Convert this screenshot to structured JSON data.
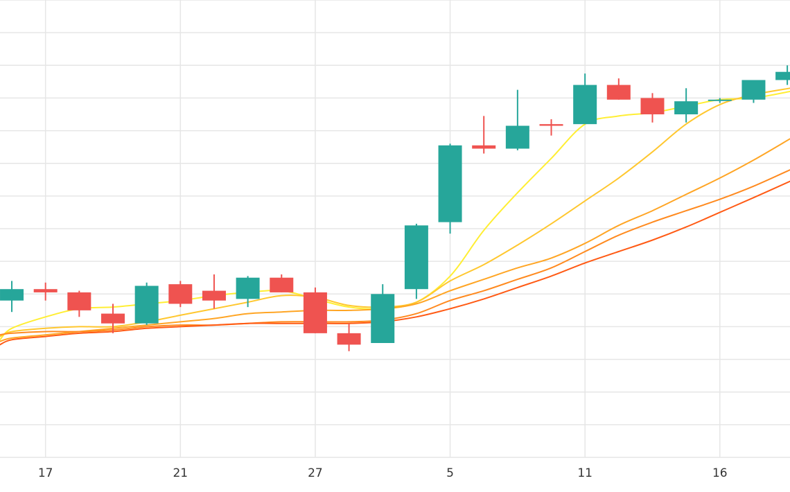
{
  "chart_data": {
    "type": "candlestick",
    "title": "",
    "xlabel": "",
    "ylabel": "",
    "x_ticks": [
      {
        "label": "17",
        "index": 1
      },
      {
        "label": "21",
        "index": 5
      },
      {
        "label": "27",
        "index": 9
      },
      {
        "label": "5",
        "index": 13
      },
      {
        "label": "11",
        "index": 17
      },
      {
        "label": "16",
        "index": 21
      }
    ],
    "y_gridlines": [
      1,
      2,
      3,
      4,
      5,
      6,
      7,
      8,
      9,
      10,
      11,
      12,
      13,
      14
    ],
    "ylim": [
      0,
      14
    ],
    "xlim": [
      -0.35,
      23.08
    ],
    "grid": true,
    "legend": "none",
    "colors": {
      "up": "#26a69a",
      "down": "#ef5350",
      "grid": "#e6e6e6"
    },
    "candles": [
      {
        "index": 0,
        "open": 4.8,
        "high": 5.4,
        "low": 4.45,
        "close": 5.15
      },
      {
        "index": 1,
        "open": 5.15,
        "high": 5.35,
        "low": 4.8,
        "close": 5.05
      },
      {
        "index": 2,
        "open": 5.05,
        "high": 5.1,
        "low": 4.3,
        "close": 4.5
      },
      {
        "index": 3,
        "open": 4.4,
        "high": 4.7,
        "low": 3.8,
        "close": 4.1
      },
      {
        "index": 4,
        "open": 4.1,
        "high": 5.35,
        "low": 4.05,
        "close": 5.25
      },
      {
        "index": 5,
        "open": 5.3,
        "high": 5.4,
        "low": 4.6,
        "close": 4.7
      },
      {
        "index": 6,
        "open": 5.1,
        "high": 5.6,
        "low": 4.55,
        "close": 4.8
      },
      {
        "index": 7,
        "open": 4.85,
        "high": 5.55,
        "low": 4.6,
        "close": 5.5
      },
      {
        "index": 8,
        "open": 5.5,
        "high": 5.6,
        "low": 5.05,
        "close": 5.05
      },
      {
        "index": 9,
        "open": 5.05,
        "high": 5.2,
        "low": 3.8,
        "close": 3.8
      },
      {
        "index": 10,
        "open": 3.8,
        "high": 4.1,
        "low": 3.25,
        "close": 3.45
      },
      {
        "index": 11,
        "open": 3.5,
        "high": 5.3,
        "low": 3.5,
        "close": 5.0
      },
      {
        "index": 12,
        "open": 5.15,
        "high": 7.15,
        "low": 4.85,
        "close": 7.1
      },
      {
        "index": 13,
        "open": 7.2,
        "high": 9.6,
        "low": 6.85,
        "close": 9.55
      },
      {
        "index": 14,
        "open": 9.55,
        "high": 10.45,
        "low": 9.3,
        "close": 9.45
      },
      {
        "index": 15,
        "open": 9.45,
        "high": 11.25,
        "low": 9.4,
        "close": 10.15
      },
      {
        "index": 16,
        "open": 10.2,
        "high": 10.35,
        "low": 9.85,
        "close": 10.15
      },
      {
        "index": 17,
        "open": 10.2,
        "high": 11.75,
        "low": 10.2,
        "close": 11.4
      },
      {
        "index": 18,
        "open": 11.4,
        "high": 11.6,
        "low": 10.95,
        "close": 10.95
      },
      {
        "index": 19,
        "open": 11.0,
        "high": 11.15,
        "low": 10.25,
        "close": 10.5
      },
      {
        "index": 20,
        "open": 10.5,
        "high": 11.3,
        "low": 10.25,
        "close": 10.9
      },
      {
        "index": 21,
        "open": 10.95,
        "high": 11.0,
        "low": 10.85,
        "close": 10.95
      },
      {
        "index": 22,
        "open": 10.95,
        "high": 11.55,
        "low": 10.85,
        "close": 11.55
      },
      {
        "index": 23,
        "open": 11.55,
        "high": 12.0,
        "low": 11.4,
        "close": 11.8
      }
    ],
    "series": [
      {
        "color": "#ffee33",
        "values": [
          [
            -0.35,
            3.6
          ],
          [
            0,
            3.95
          ],
          [
            1,
            4.3
          ],
          [
            2,
            4.55
          ],
          [
            3,
            4.6
          ],
          [
            4,
            4.7
          ],
          [
            5,
            4.8
          ],
          [
            6,
            4.95
          ],
          [
            7,
            5.05
          ],
          [
            8,
            5.1
          ],
          [
            9,
            4.85
          ],
          [
            10,
            4.6
          ],
          [
            11,
            4.55
          ],
          [
            12,
            4.75
          ],
          [
            13,
            5.55
          ],
          [
            14,
            6.95
          ],
          [
            15,
            8.1
          ],
          [
            16,
            9.15
          ],
          [
            17,
            10.2
          ],
          [
            18,
            10.45
          ],
          [
            19,
            10.55
          ],
          [
            20,
            10.75
          ],
          [
            21,
            10.95
          ],
          [
            22,
            11.0
          ],
          [
            23.08,
            11.2
          ]
        ]
      },
      {
        "color": "#ffc72e",
        "values": [
          [
            -0.35,
            3.7
          ],
          [
            0,
            3.85
          ],
          [
            1,
            3.95
          ],
          [
            2,
            4.0
          ],
          [
            3,
            4.0
          ],
          [
            4,
            4.15
          ],
          [
            5,
            4.35
          ],
          [
            6,
            4.55
          ],
          [
            7,
            4.75
          ],
          [
            8,
            4.95
          ],
          [
            9,
            4.9
          ],
          [
            10,
            4.65
          ],
          [
            11,
            4.6
          ],
          [
            12,
            4.75
          ],
          [
            13,
            5.4
          ],
          [
            14,
            5.9
          ],
          [
            15,
            6.5
          ],
          [
            16,
            7.15
          ],
          [
            17,
            7.85
          ],
          [
            18,
            8.55
          ],
          [
            19,
            9.35
          ],
          [
            20,
            10.2
          ],
          [
            21,
            10.8
          ],
          [
            22,
            11.1
          ],
          [
            23.08,
            11.3
          ]
        ]
      },
      {
        "color": "#ffa524",
        "values": [
          [
            -0.35,
            3.55
          ],
          [
            0,
            3.65
          ],
          [
            1,
            3.75
          ],
          [
            2,
            3.85
          ],
          [
            3,
            3.95
          ],
          [
            4,
            4.05
          ],
          [
            5,
            4.15
          ],
          [
            6,
            4.25
          ],
          [
            7,
            4.4
          ],
          [
            8,
            4.45
          ],
          [
            9,
            4.5
          ],
          [
            10,
            4.5
          ],
          [
            11,
            4.55
          ],
          [
            12,
            4.7
          ],
          [
            13,
            5.1
          ],
          [
            14,
            5.45
          ],
          [
            15,
            5.8
          ],
          [
            16,
            6.1
          ],
          [
            17,
            6.55
          ],
          [
            18,
            7.1
          ],
          [
            19,
            7.55
          ],
          [
            20,
            8.05
          ],
          [
            21,
            8.55
          ],
          [
            22,
            9.1
          ],
          [
            23.08,
            9.75
          ]
        ]
      },
      {
        "color": "#ff8a1f",
        "values": [
          [
            -0.35,
            3.75
          ],
          [
            0,
            3.8
          ],
          [
            1,
            3.85
          ],
          [
            2,
            3.85
          ],
          [
            3,
            3.9
          ],
          [
            4,
            4.0
          ],
          [
            5,
            4.05
          ],
          [
            6,
            4.05
          ],
          [
            7,
            4.1
          ],
          [
            8,
            4.15
          ],
          [
            9,
            4.15
          ],
          [
            10,
            4.15
          ],
          [
            11,
            4.2
          ],
          [
            12,
            4.4
          ],
          [
            13,
            4.8
          ],
          [
            14,
            5.1
          ],
          [
            15,
            5.45
          ],
          [
            16,
            5.8
          ],
          [
            17,
            6.3
          ],
          [
            18,
            6.8
          ],
          [
            19,
            7.2
          ],
          [
            20,
            7.55
          ],
          [
            21,
            7.9
          ],
          [
            22,
            8.3
          ],
          [
            23.08,
            8.8
          ]
        ]
      },
      {
        "color": "#ff5a14",
        "values": [
          [
            -0.35,
            3.45
          ],
          [
            0,
            3.6
          ],
          [
            1,
            3.7
          ],
          [
            2,
            3.8
          ],
          [
            3,
            3.85
          ],
          [
            4,
            3.95
          ],
          [
            5,
            4.0
          ],
          [
            6,
            4.05
          ],
          [
            7,
            4.1
          ],
          [
            8,
            4.1
          ],
          [
            9,
            4.1
          ],
          [
            10,
            4.1
          ],
          [
            11,
            4.15
          ],
          [
            12,
            4.3
          ],
          [
            13,
            4.55
          ],
          [
            14,
            4.85
          ],
          [
            15,
            5.2
          ],
          [
            16,
            5.55
          ],
          [
            17,
            5.95
          ],
          [
            18,
            6.3
          ],
          [
            19,
            6.65
          ],
          [
            20,
            7.05
          ],
          [
            21,
            7.5
          ],
          [
            22,
            7.95
          ],
          [
            23.08,
            8.45
          ]
        ]
      }
    ]
  }
}
